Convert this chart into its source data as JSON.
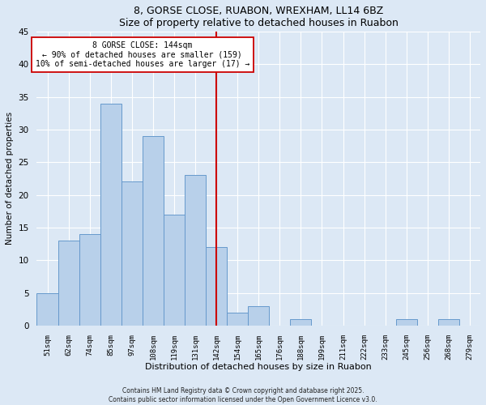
{
  "title": "8, GORSE CLOSE, RUABON, WREXHAM, LL14 6BZ",
  "subtitle": "Size of property relative to detached houses in Ruabon",
  "xlabel": "Distribution of detached houses by size in Ruabon",
  "ylabel": "Number of detached properties",
  "bin_labels": [
    "51sqm",
    "62sqm",
    "74sqm",
    "85sqm",
    "97sqm",
    "108sqm",
    "119sqm",
    "131sqm",
    "142sqm",
    "154sqm",
    "165sqm",
    "176sqm",
    "188sqm",
    "199sqm",
    "211sqm",
    "222sqm",
    "233sqm",
    "245sqm",
    "256sqm",
    "268sqm",
    "279sqm"
  ],
  "bin_values": [
    5,
    13,
    14,
    34,
    22,
    29,
    17,
    23,
    12,
    2,
    3,
    0,
    1,
    0,
    0,
    0,
    0,
    1,
    0,
    1,
    0
  ],
  "bar_color": "#b8d0ea",
  "bar_edge_color": "#6699cc",
  "vline_x_index": 8,
  "vline_color": "#cc0000",
  "annotation_title": "8 GORSE CLOSE: 144sqm",
  "annotation_line1": "← 90% of detached houses are smaller (159)",
  "annotation_line2": "10% of semi-detached houses are larger (17) →",
  "annotation_box_color": "#ffffff",
  "annotation_box_edge": "#cc0000",
  "ylim": [
    0,
    45
  ],
  "yticks": [
    0,
    5,
    10,
    15,
    20,
    25,
    30,
    35,
    40,
    45
  ],
  "background_color": "#dce8f5",
  "grid_color": "#ffffff",
  "footer1": "Contains HM Land Registry data © Crown copyright and database right 2025.",
  "footer2": "Contains public sector information licensed under the Open Government Licence v3.0."
}
